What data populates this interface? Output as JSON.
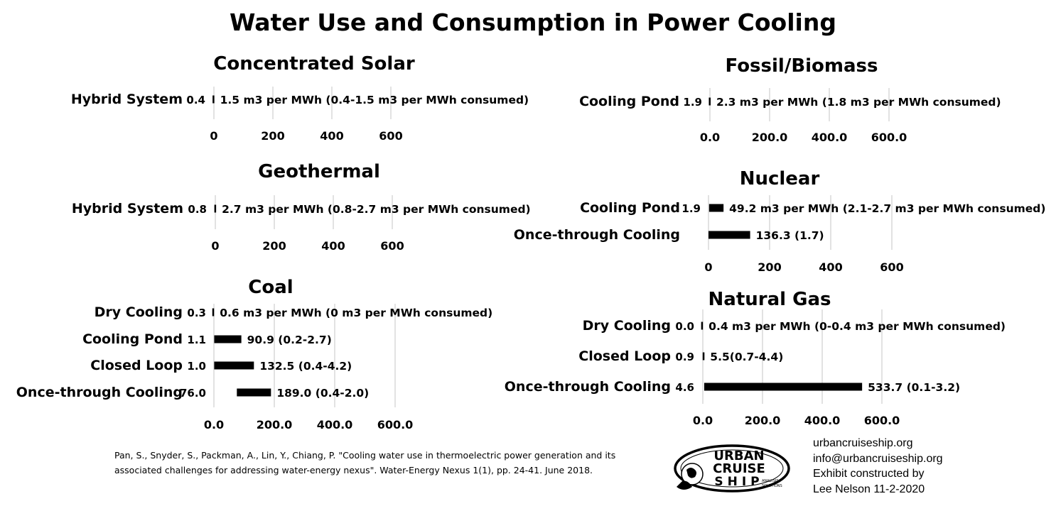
{
  "title": "Water Use and Consumption in Power Cooling",
  "chart_data": [
    {
      "type": "bar",
      "title": "Concentrated Solar",
      "categories": [
        "Hybrid System"
      ],
      "series": [
        {
          "values": [
            0.4
          ],
          "labels": [
            "0.4"
          ]
        },
        {
          "values": [
            1.5
          ],
          "labels": [
            "1.5 m3 per MWh (0.4-1.5 m3 per MWh consumed)"
          ]
        }
      ],
      "ticks": [
        "0",
        "200",
        "400",
        "600"
      ],
      "xlim": [
        0,
        600
      ],
      "grid": true
    },
    {
      "type": "bar",
      "title": "Fossil/Biomass",
      "categories": [
        "Cooling Pond"
      ],
      "series": [
        {
          "values": [
            1.9
          ],
          "labels": [
            "1.9"
          ]
        },
        {
          "values": [
            2.3
          ],
          "labels": [
            "2.3 m3 per MWh (1.8 m3 per MWh consumed)"
          ]
        }
      ],
      "ticks": [
        "0.0",
        "200.0",
        "400.0",
        "600.0"
      ],
      "xlim": [
        0,
        600
      ],
      "grid": true
    },
    {
      "type": "bar",
      "title": "Geothermal",
      "categories": [
        "Hybrid System"
      ],
      "series": [
        {
          "values": [
            0.8
          ],
          "labels": [
            "0.8"
          ]
        },
        {
          "values": [
            2.7
          ],
          "labels": [
            "2.7 m3 per MWh (0.8-2.7 m3 per MWh consumed)"
          ]
        }
      ],
      "ticks": [
        "0",
        "200",
        "400",
        "600"
      ],
      "xlim": [
        0,
        600
      ],
      "grid": true
    },
    {
      "type": "bar",
      "title": "Nuclear",
      "categories": [
        "Cooling Pond",
        "Once-through Cooling"
      ],
      "series": [
        {
          "values": [
            1.9,
            0
          ],
          "labels": [
            "1.9",
            ""
          ]
        },
        {
          "values": [
            49.2,
            136.3
          ],
          "labels": [
            "49.2 m3 per MWh (2.1-2.7 m3 per MWh consumed)",
            "136.3 (1.7)"
          ]
        }
      ],
      "ticks": [
        "0",
        "200",
        "400",
        "600"
      ],
      "xlim": [
        0,
        600
      ],
      "grid": true
    },
    {
      "type": "bar",
      "title": "Coal",
      "categories": [
        "Dry Cooling",
        "Cooling Pond",
        "Closed Loop",
        "Once-through Cooling"
      ],
      "series": [
        {
          "values": [
            0.3,
            1.1,
            1.0,
            76.0
          ],
          "labels": [
            "0.3",
            "1.1",
            "1.0",
            "76.0"
          ]
        },
        {
          "values": [
            0.6,
            90.9,
            132.5,
            189.0
          ],
          "labels": [
            "0.6 m3 per MWh (0 m3 per MWh consumed)",
            "90.9 (0.2-2.7)",
            "132.5 (0.4-4.2)",
            "189.0 (0.4-2.0)"
          ]
        }
      ],
      "ticks": [
        "0.0",
        "200.0",
        "400.0",
        "600.0"
      ],
      "xlim": [
        0,
        600
      ],
      "grid": true
    },
    {
      "type": "bar",
      "title": "Natural Gas",
      "categories": [
        "Dry Cooling",
        "Closed Loop",
        "Once-through Cooling"
      ],
      "series": [
        {
          "values": [
            0.0,
            0.9,
            4.6
          ],
          "labels": [
            "0.0",
            "0.9",
            "4.6"
          ]
        },
        {
          "values": [
            0.4,
            5.5,
            533.7
          ],
          "labels": [
            "0.4 m3 per MWh (0-0.4 m3 per MWh consumed)",
            "5.5(0.7-4.4)",
            "533.7 (0.1-3.2)"
          ]
        }
      ],
      "ticks": [
        "0.0",
        "200.0",
        "400.0",
        "600.0"
      ],
      "xlim": [
        0,
        600
      ],
      "grid": true
    }
  ],
  "citation": "Pan, S., Snyder, S., Packman, A., Lin, Y., Chiang, P. \"Cooling water use in thermoelectric power generation and its associated challenges for addressing water-energy nexus\". Water-Energy Nexus 1(1), pp. 24-41. June 2018.",
  "contact": {
    "website": "urbancruiseship.org",
    "email": "info@urbancruiseship.org",
    "credit_line1": "Exhibit constructed by",
    "credit_line2": "Lee Nelson 11-2-2020"
  },
  "logo": {
    "line1": "URBAN",
    "line2": "CRUISE",
    "line3": "SHIP",
    "tagline1": "ANALYSIS",
    "tagline2": "SOLUTIONS"
  }
}
